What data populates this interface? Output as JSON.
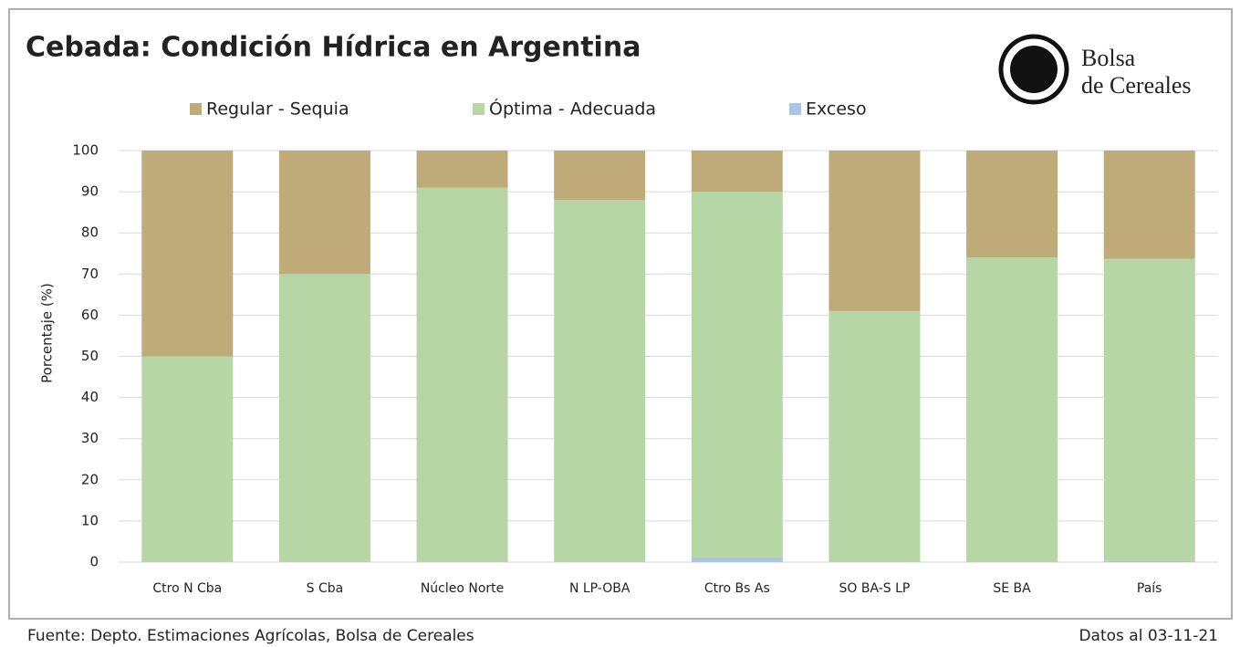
{
  "chart_data": {
    "type": "stacked_bar",
    "title": "Cebada: Condición Hídrica en Argentina",
    "logo_text": [
      "Bolsa",
      "de Cereales"
    ],
    "y_label": "Porcentaje (%)",
    "source": "Fuente: Depto. Estimaciones Agrícolas, Bolsa de Cereales",
    "date_note": "Datos al 03-11-21",
    "categories": [
      "Ctro N Cba",
      "S Cba",
      "Núcleo Norte",
      "N LP-OBA",
      "Ctro Bs As",
      "SO BA-S LP",
      "SE BA",
      "País"
    ],
    "series": [
      {
        "name": "Regular - Sequia",
        "color": "#bfaa7a",
        "values": [
          50,
          30,
          9,
          12,
          10,
          39,
          26,
          26.3
        ]
      },
      {
        "name": "Óptima - Adecuada",
        "color": "#b6d6a6",
        "values": [
          50,
          70,
          91,
          88,
          89,
          61,
          74,
          73.4
        ]
      },
      {
        "name": "Exceso",
        "color": "#a9c5ea",
        "values": [
          0,
          0,
          0,
          0,
          1,
          0,
          0,
          0.3
        ]
      }
    ],
    "ylim": [
      0,
      100
    ],
    "yticks": [
      0,
      10,
      20,
      30,
      40,
      50,
      60,
      70,
      80,
      90,
      100
    ],
    "grid": true
  }
}
